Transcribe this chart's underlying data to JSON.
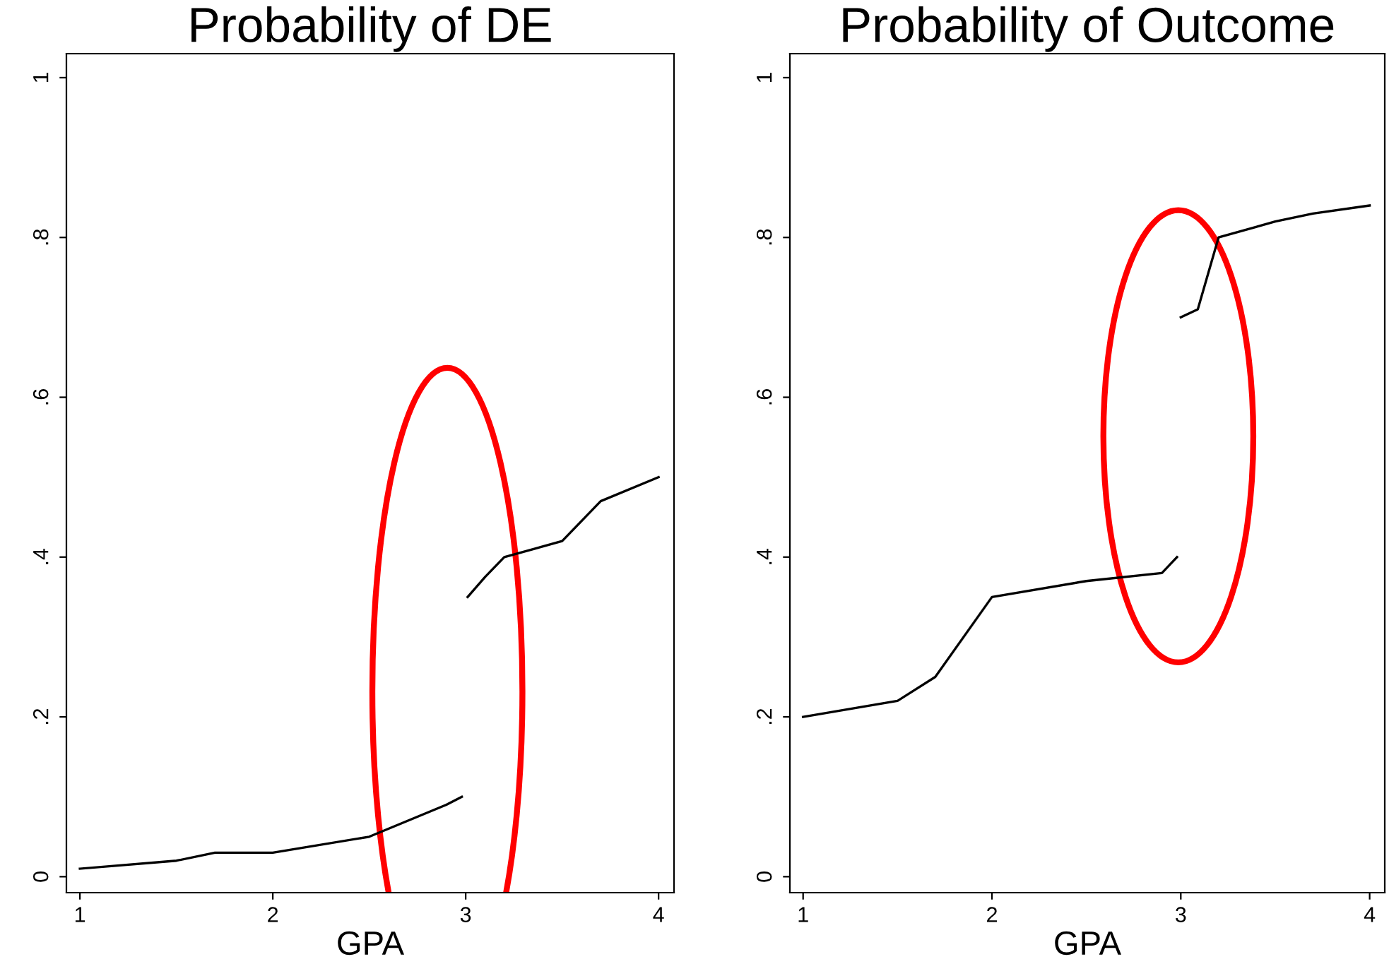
{
  "chart_data": [
    {
      "type": "line",
      "title": "Probability of DE",
      "xlabel": "GPA",
      "xlim": [
        0.93,
        4.08
      ],
      "ylim": [
        -0.02,
        1.03
      ],
      "xticks": [
        1,
        2,
        3,
        4
      ],
      "yticks": [
        0,
        {
          "value": 0.2,
          "label": ".2"
        },
        {
          "value": 0.4,
          "label": ".4"
        },
        {
          "value": 0.6,
          "label": ".6"
        },
        {
          "value": 0.8,
          "label": ".8"
        },
        1
      ],
      "grid": false,
      "legend": false,
      "series": [
        {
          "color": "#000000",
          "x": [
            1,
            1.5,
            1.7,
            2.0,
            2.5,
            2.9,
            2.98
          ],
          "values": [
            0.01,
            0.02,
            0.03,
            0.03,
            0.05,
            0.09,
            0.1
          ]
        },
        {
          "color": "#000000",
          "x": [
            3.01,
            3.1,
            3.2,
            3.5,
            3.7,
            4.0
          ],
          "values": [
            0.35,
            0.375,
            0.4,
            0.42,
            0.47,
            0.5
          ]
        }
      ]
    },
    {
      "type": "line",
      "title": "Probability of Outcome",
      "xlabel": "GPA",
      "xlim": [
        0.93,
        4.08
      ],
      "ylim": [
        -0.02,
        1.03
      ],
      "xticks": [
        1,
        2,
        3,
        4
      ],
      "yticks": [
        0,
        {
          "value": 0.2,
          "label": ".2"
        },
        {
          "value": 0.4,
          "label": ".4"
        },
        {
          "value": 0.6,
          "label": ".6"
        },
        {
          "value": 0.8,
          "label": ".8"
        },
        1
      ],
      "grid": false,
      "legend": false,
      "series": [
        {
          "color": "#000000",
          "x": [
            1,
            1.5,
            1.7,
            2.0,
            2.5,
            2.9,
            2.98
          ],
          "values": [
            0.2,
            0.22,
            0.25,
            0.35,
            0.37,
            0.38,
            0.4
          ]
        },
        {
          "color": "#000000",
          "x": [
            3.0,
            3.09,
            3.2,
            3.5,
            3.7,
            4.0
          ],
          "values": [
            0.7,
            0.71,
            0.8,
            0.82,
            0.83,
            0.84
          ]
        }
      ]
    }
  ]
}
